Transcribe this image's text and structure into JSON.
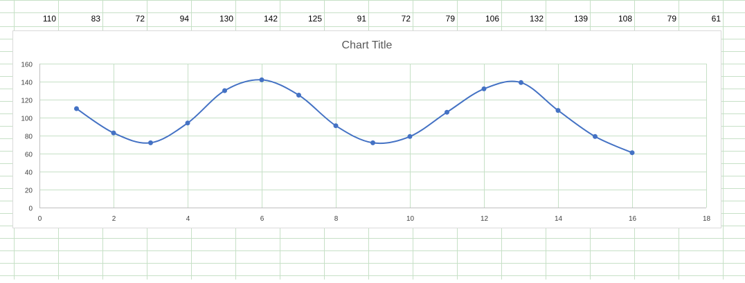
{
  "colors": {
    "grid": "#c6e0c6",
    "series": "#4472c4",
    "axis": "#bfbfbf",
    "text": "#404040"
  },
  "header_row": [
    "110",
    "83",
    "72",
    "94",
    "130",
    "142",
    "125",
    "91",
    "72",
    "79",
    "106",
    "132",
    "139",
    "108",
    "79",
    "61"
  ],
  "chart_data": {
    "type": "scatter",
    "title": "Chart Title",
    "xlim": [
      0,
      18
    ],
    "ylim": [
      0,
      160
    ],
    "x_ticks": [
      "0",
      "2",
      "4",
      "6",
      "8",
      "10",
      "12",
      "14",
      "16",
      "18"
    ],
    "y_ticks": [
      "0",
      "20",
      "40",
      "60",
      "80",
      "100",
      "120",
      "140",
      "160"
    ],
    "grid": true,
    "smooth": true,
    "series": [
      {
        "x": [
          1,
          2,
          3,
          4,
          5,
          6,
          7,
          8,
          9,
          10,
          11,
          12,
          13,
          14,
          15,
          16
        ],
        "y": [
          110,
          83,
          72,
          94,
          130,
          142,
          125,
          91,
          72,
          79,
          106,
          132,
          139,
          108,
          79,
          61
        ]
      }
    ]
  }
}
